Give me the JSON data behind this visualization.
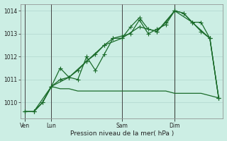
{
  "background_color": "#cceee4",
  "grid_color": "#b8ddd4",
  "line_color": "#1a6b2a",
  "title": "Pression niveau de la mer( hPa )",
  "ylim": [
    1009.3,
    1014.3
  ],
  "yticks": [
    1010,
    1011,
    1012,
    1013,
    1014
  ],
  "day_labels": [
    "Ven",
    "Lun",
    "Sam",
    "Dim"
  ],
  "day_positions": [
    0,
    3,
    11,
    17
  ],
  "vline_x": 17,
  "n_points": 23,
  "series1_x": [
    0,
    1,
    2,
    3,
    4,
    5,
    6,
    7,
    8,
    9,
    10,
    11,
    12,
    13,
    14,
    15,
    16,
    17,
    18,
    19,
    20,
    21,
    22
  ],
  "series1_y": [
    1009.6,
    1009.6,
    1010.0,
    1010.7,
    1011.0,
    1011.1,
    1011.4,
    1011.8,
    1012.1,
    1012.5,
    1012.8,
    1012.8,
    1013.3,
    1013.7,
    1013.2,
    1013.1,
    1013.5,
    1014.0,
    1013.9,
    1013.5,
    1013.5,
    1012.8,
    1010.2
  ],
  "series2_x": [
    0,
    1,
    2,
    3,
    4,
    5,
    6,
    7,
    8,
    9,
    10,
    11,
    12,
    13,
    14,
    15,
    16,
    17,
    18,
    19,
    20,
    21,
    22
  ],
  "series2_y": [
    1009.6,
    1009.6,
    1010.0,
    1010.7,
    1011.5,
    1011.1,
    1011.0,
    1012.0,
    1011.4,
    1012.1,
    1012.8,
    1012.9,
    1013.0,
    1013.6,
    1013.0,
    1013.2,
    1013.4,
    1014.0,
    1013.9,
    1013.5,
    1013.1,
    1012.8,
    1010.2
  ],
  "series3_x": [
    0,
    1,
    2,
    3,
    4,
    5,
    6,
    7,
    8,
    9,
    10,
    11,
    12,
    13,
    14,
    15,
    16,
    17,
    18,
    19,
    20,
    21,
    22
  ],
  "series3_y": [
    1009.6,
    1009.6,
    1010.0,
    1010.7,
    1010.6,
    1010.6,
    1010.5,
    1010.5,
    1010.5,
    1010.5,
    1010.5,
    1010.5,
    1010.5,
    1010.5,
    1010.5,
    1010.5,
    1010.5,
    1010.4,
    1010.4,
    1010.4,
    1010.4,
    1010.3,
    1010.2
  ],
  "series4_x": [
    0,
    1,
    3,
    5,
    7,
    9,
    11,
    13,
    15,
    17,
    19,
    21,
    22
  ],
  "series4_y": [
    1009.6,
    1009.6,
    1010.7,
    1011.1,
    1011.8,
    1012.5,
    1012.8,
    1013.3,
    1013.1,
    1014.0,
    1013.5,
    1012.8,
    1010.2
  ]
}
